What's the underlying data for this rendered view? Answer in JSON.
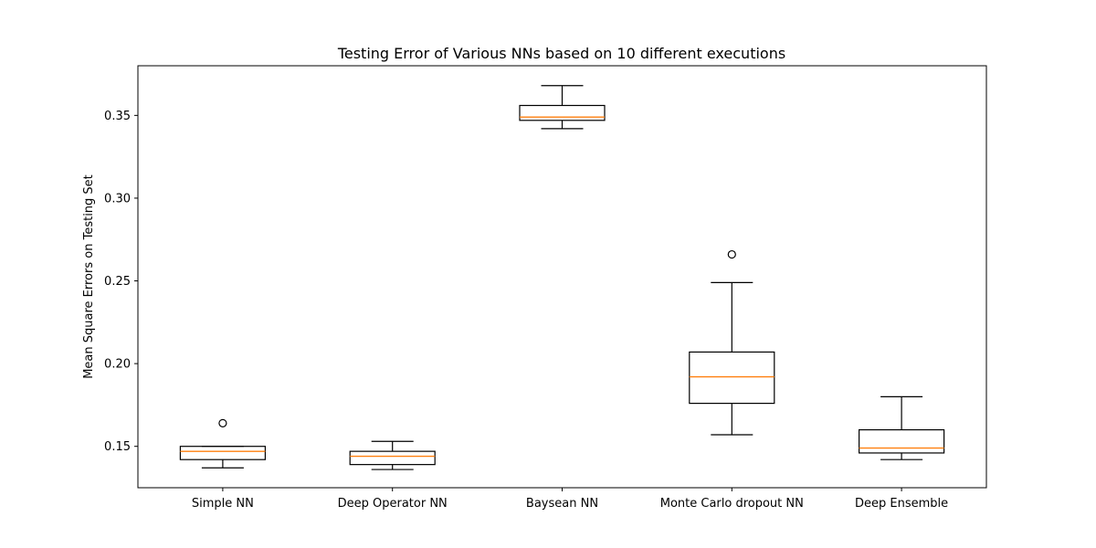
{
  "chart_data": {
    "type": "box",
    "title": "Testing Error of Various NNs based on 10 different executions",
    "xlabel": "",
    "ylabel": "Mean Square Errors on Testing Set",
    "ylim": [
      0.125,
      0.38
    ],
    "yticks": [
      0.15,
      0.2,
      0.25,
      0.3,
      0.35
    ],
    "grid": false,
    "categories": [
      "Simple NN",
      "Deep Operator NN",
      "Baysean NN",
      "Monte Carlo dropout NN",
      "Deep Ensemble"
    ],
    "boxes": [
      {
        "name": "Simple NN",
        "whisker_low": 0.137,
        "q1": 0.142,
        "median": 0.147,
        "q3": 0.15,
        "whisker_high": 0.15,
        "outliers": [
          0.164
        ]
      },
      {
        "name": "Deep Operator NN",
        "whisker_low": 0.136,
        "q1": 0.139,
        "median": 0.144,
        "q3": 0.147,
        "whisker_high": 0.153,
        "outliers": []
      },
      {
        "name": "Baysean NN",
        "whisker_low": 0.342,
        "q1": 0.347,
        "median": 0.349,
        "q3": 0.356,
        "whisker_high": 0.368,
        "outliers": []
      },
      {
        "name": "Monte Carlo dropout NN",
        "whisker_low": 0.157,
        "q1": 0.176,
        "median": 0.192,
        "q3": 0.207,
        "whisker_high": 0.249,
        "outliers": [
          0.266
        ]
      },
      {
        "name": "Deep Ensemble",
        "whisker_low": 0.142,
        "q1": 0.146,
        "median": 0.149,
        "q3": 0.16,
        "whisker_high": 0.18,
        "outliers": []
      }
    ],
    "colors": {
      "box": "#000000",
      "median": "#ff7f0e"
    }
  }
}
